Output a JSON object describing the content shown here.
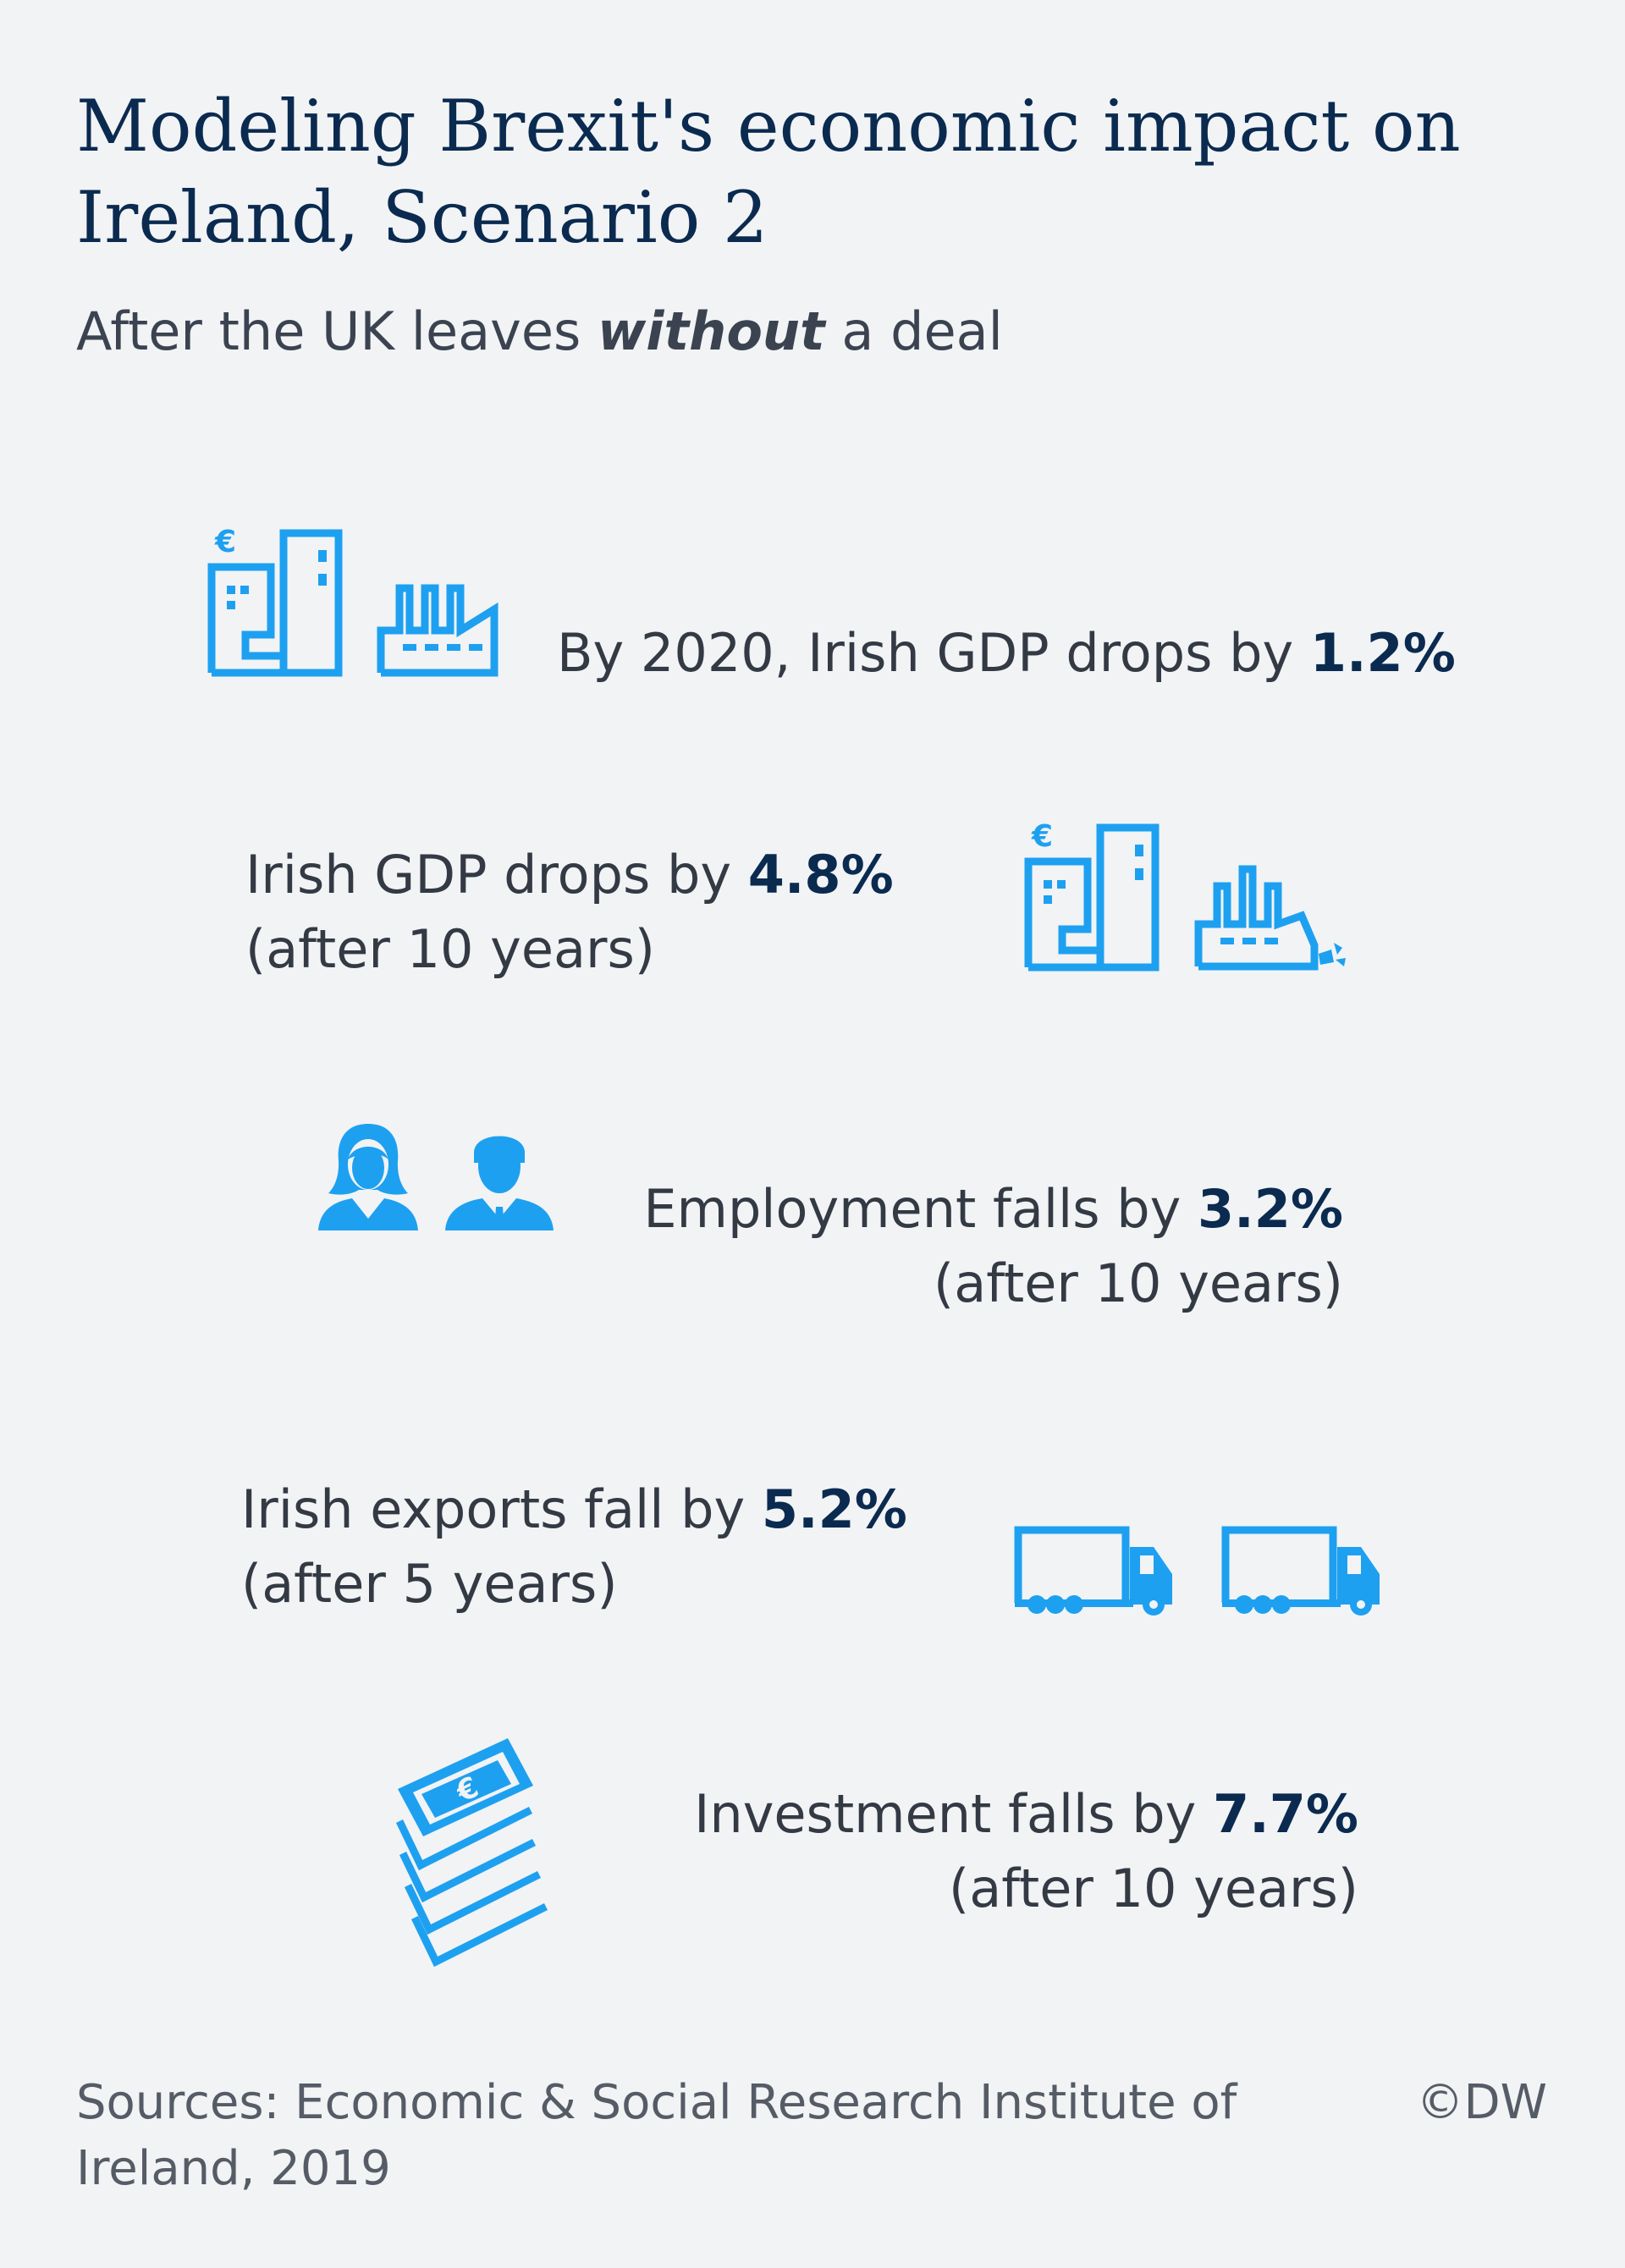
{
  "title": "Modeling Brexit's economic impact on Ireland, Scenario 2",
  "subtitle": {
    "before": "After the UK leaves ",
    "emphasis": "without",
    "after": " a deal"
  },
  "stats": [
    {
      "text": "By 2020, Irish GDP drops by ",
      "value": "1.2%",
      "note": ""
    },
    {
      "text": "Irish GDP drops by ",
      "value": "4.8%",
      "note": "(after 10 years)"
    },
    {
      "text": "Employment falls by ",
      "value": "3.2%",
      "note": "(after 10 years)"
    },
    {
      "text": "Irish exports fall by ",
      "value": "5.2%",
      "note": "(after 5 years)"
    },
    {
      "text": "Investment falls by ",
      "value": "7.7%",
      "note": "(after 10 years)"
    }
  ],
  "icons": {
    "accent": "#1ea0f0",
    "names": [
      "euro-office-building-icon",
      "factory-icon",
      "euro-office-building-icon",
      "crumbling-factory-icon",
      "woman-icon",
      "man-icon",
      "truck-icon",
      "truck-icon",
      "euro-banknotes-icon"
    ],
    "euro_symbol": "€"
  },
  "footer": {
    "sources": "Sources: Economic & Social Research Institute of Ireland, 2019",
    "credit": "©DW"
  }
}
